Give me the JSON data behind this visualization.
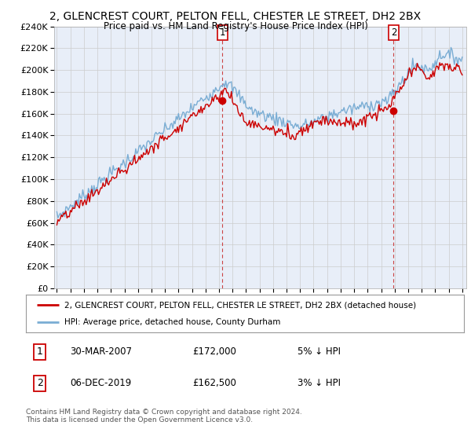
{
  "title": "2, GLENCREST COURT, PELTON FELL, CHESTER LE STREET, DH2 2BX",
  "subtitle": "Price paid vs. HM Land Registry's House Price Index (HPI)",
  "legend_line1": "2, GLENCREST COURT, PELTON FELL, CHESTER LE STREET, DH2 2BX (detached house)",
  "legend_line2": "HPI: Average price, detached house, County Durham",
  "transaction1_date": "30-MAR-2007",
  "transaction1_price": "£172,000",
  "transaction1_hpi": "5% ↓ HPI",
  "transaction2_date": "06-DEC-2019",
  "transaction2_price": "£162,500",
  "transaction2_hpi": "3% ↓ HPI",
  "footer": "Contains HM Land Registry data © Crown copyright and database right 2024.\nThis data is licensed under the Open Government Licence v3.0.",
  "hpi_color": "#7aadd4",
  "price_color": "#cc0000",
  "ylim": [
    0,
    240000
  ],
  "yticks": [
    0,
    20000,
    40000,
    60000,
    80000,
    100000,
    120000,
    140000,
    160000,
    180000,
    200000,
    220000,
    240000
  ],
  "transaction1_year": 2007.25,
  "transaction2_year": 2019.92,
  "transaction1_value": 172000,
  "transaction2_value": 162500,
  "background_color": "#ffffff",
  "grid_color": "#cccccc",
  "plot_bg_color": "#e8eef8"
}
